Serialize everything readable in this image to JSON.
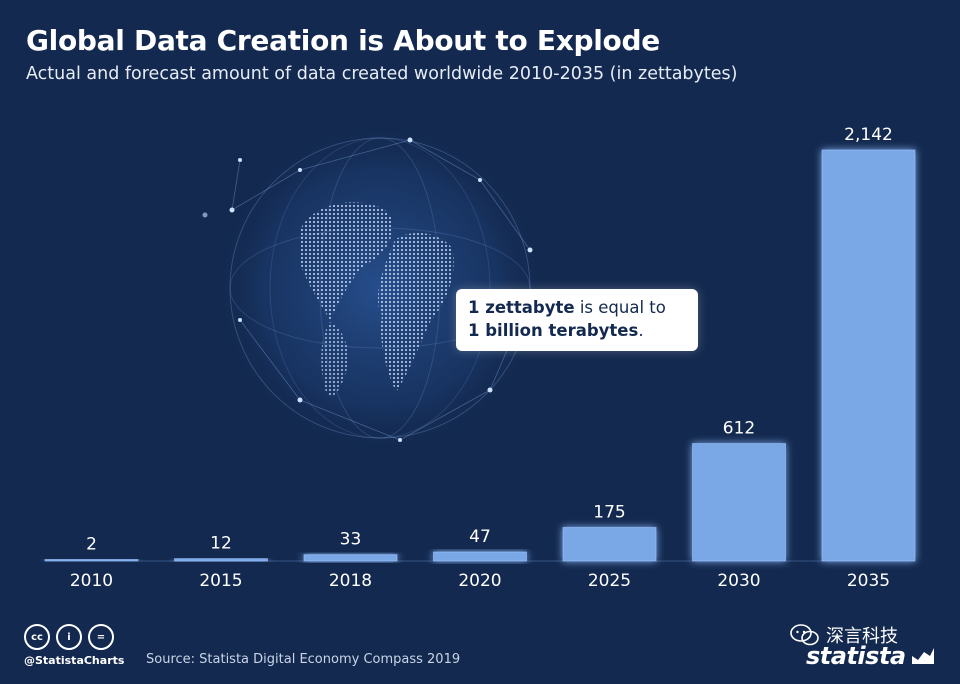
{
  "header": {
    "title": "Global Data Creation is About to Explode",
    "subtitle": "Actual and forecast amount of data created worldwide 2010-2035 (in zettabytes)"
  },
  "callout": {
    "part1_bold": "1 zettabyte",
    "part1_rest": " is equal to",
    "part2_bold": "1 billion terabytes",
    "part2_rest": "."
  },
  "footer": {
    "license_icons": [
      "cc-icon",
      "by-icon",
      "nd-icon"
    ],
    "license_glyphs": [
      "cc",
      "i",
      "="
    ],
    "handle": "@StatistaCharts",
    "source": "Source: Statista Digital Economy Compass 2019",
    "wechat_text": "深言科技",
    "logo_text": "statista"
  },
  "colors": {
    "background": "#13294f",
    "bar": "#7aa7e6",
    "bar_glow": "#9cc3ff",
    "text": "#ffffff"
  },
  "chart_data": {
    "type": "bar",
    "title": "Global Data Creation is About to Explode",
    "subtitle": "Actual and forecast amount of data created worldwide 2010-2035 (in zettabytes)",
    "categories": [
      "2010",
      "2015",
      "2018",
      "2020",
      "2025",
      "2030",
      "2035"
    ],
    "values": [
      2,
      12,
      33,
      47,
      175,
      612,
      2142
    ],
    "value_labels": [
      "2",
      "12",
      "33",
      "47",
      "175",
      "612",
      "2,142"
    ],
    "xlabel": "",
    "ylabel": "",
    "ylim": [
      0,
      2142
    ],
    "grid": false,
    "legend": "none"
  }
}
